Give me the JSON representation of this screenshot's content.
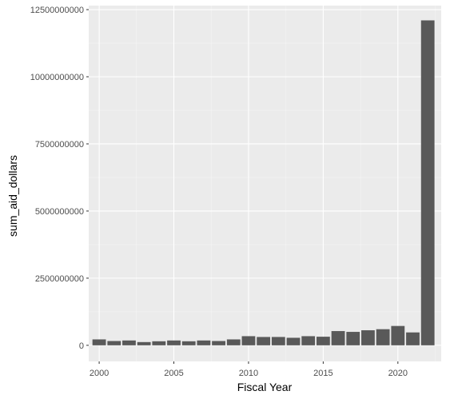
{
  "chart_data": {
    "type": "bar",
    "title": "",
    "xlabel": "Fiscal Year",
    "ylabel": "sum_aid_dollars",
    "x": [
      2000,
      2001,
      2002,
      2003,
      2004,
      2005,
      2006,
      2007,
      2008,
      2009,
      2010,
      2011,
      2012,
      2013,
      2014,
      2015,
      2016,
      2017,
      2018,
      2019,
      2020,
      2021,
      2022
    ],
    "values": [
      220000000,
      160000000,
      180000000,
      120000000,
      150000000,
      180000000,
      150000000,
      180000000,
      160000000,
      220000000,
      340000000,
      310000000,
      310000000,
      280000000,
      340000000,
      320000000,
      530000000,
      500000000,
      560000000,
      600000000,
      720000000,
      480000000,
      12100000000
    ],
    "xlim": [
      1999.3,
      2022.9
    ],
    "ylim": [
      -600000000,
      12650000000
    ],
    "x_ticks": [
      2000,
      2005,
      2010,
      2015,
      2020
    ],
    "x_tick_labels": [
      "2000",
      "2005",
      "2010",
      "2015",
      "2020"
    ],
    "y_ticks": [
      0,
      2500000000,
      5000000000,
      7500000000,
      10000000000,
      12500000000
    ],
    "y_tick_labels": [
      "0",
      "2500000000",
      "5000000000",
      "7500000000",
      "10000000000",
      "12500000000"
    ],
    "grid": true,
    "colors": {
      "panel_background": "#ebebeb",
      "grid_major": "#ffffff",
      "grid_minor": "#f5f5f5",
      "bar_fill": "#595959",
      "tick_text": "#4d4d4d",
      "tick_mark": "#333333",
      "title_text": "#000000"
    }
  }
}
